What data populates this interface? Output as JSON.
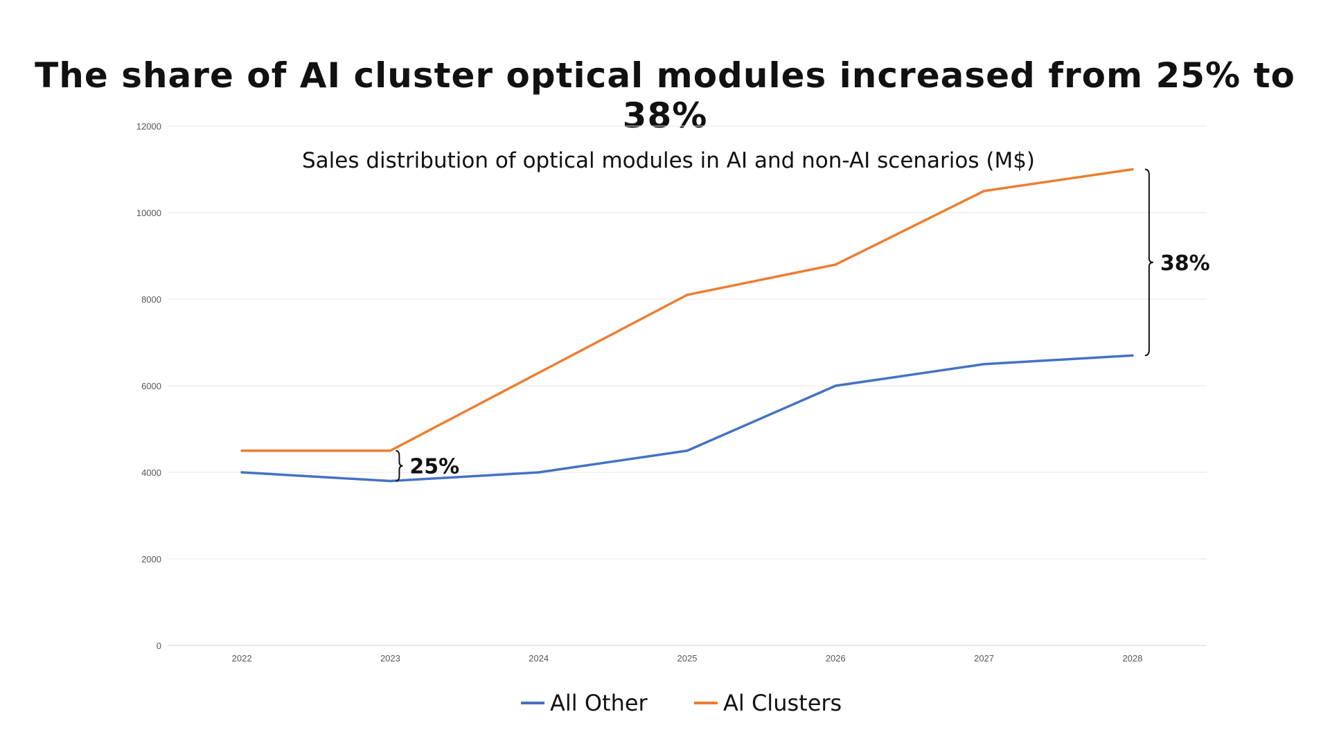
{
  "chart_data": {
    "type": "line",
    "title": "The share of AI cluster optical modules increased from 25% to 38%",
    "subtitle": "Sales distribution of optical modules in AI and non-AI scenarios (M$)",
    "categories": [
      "2022",
      "2023",
      "2024",
      "2025",
      "2026",
      "2027",
      "2028"
    ],
    "ylim": [
      0,
      12000
    ],
    "yticks": [
      0,
      2000,
      4000,
      6000,
      8000,
      10000,
      12000
    ],
    "grid": true,
    "legend_position": "bottom",
    "series": [
      {
        "name": "All Other",
        "color": "#4472C4",
        "values": [
          4000,
          3800,
          4000,
          4500,
          6000,
          6500,
          6700
        ]
      },
      {
        "name": "Al Clusters",
        "color": "#ED7D31",
        "values": [
          4500,
          4500,
          6300,
          8100,
          8800,
          10500,
          11000
        ]
      }
    ],
    "annotations": [
      {
        "text": "25%",
        "category": "2023"
      },
      {
        "text": "38%",
        "category": "2028"
      }
    ]
  }
}
